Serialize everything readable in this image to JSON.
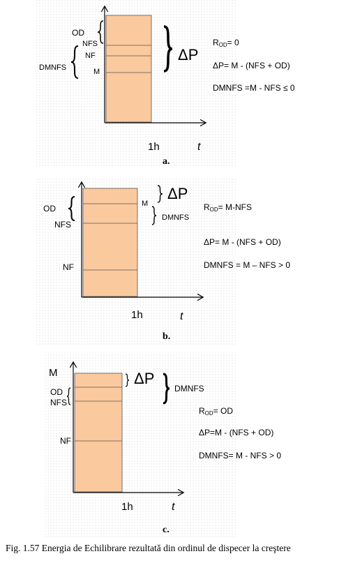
{
  "panels": [
    {
      "caption": "a.",
      "od": "OD",
      "nfs": "NFS",
      "nf": "NF",
      "m": "M",
      "dmnfs": "DMNFS",
      "delta_p": "ΔP",
      "r_od": {
        "symbol": "R",
        "subscript": "OD",
        "rest": "= 0"
      },
      "delta_p_formula": "ΔP= M - (NFS + OD)",
      "dmnfs_formula": "DMNFS =M - NFS ≤ 0",
      "x_tick": "1h",
      "x_label": "t"
    },
    {
      "caption": "b.",
      "od": "OD",
      "nfs": "NFS",
      "nf": "NF",
      "m": "M",
      "dmnfs": "DMNFS",
      "delta_p": "ΔP",
      "r_od": {
        "symbol": "R",
        "subscript": "OD",
        "rest": "= M-NFS"
      },
      "delta_p_formula": "ΔP= M - (NFS + OD)",
      "dmnfs_formula": "DMNFS = M – NFS > 0",
      "x_tick": "1h",
      "x_label": "t"
    },
    {
      "caption": "c.",
      "od": "OD",
      "nfs": "NFS",
      "nf": "NF",
      "m": "M",
      "dmnfs": "DMNFS",
      "delta_p": "ΔP",
      "r_od": {
        "symbol": "R",
        "subscript": "OD",
        "rest": "= OD"
      },
      "delta_p_formula": "ΔP=M - (NFS + OD)",
      "dmnfs_formula": "DMNFS= M - NFS > 0",
      "x_tick": "1h",
      "x_label": "t"
    }
  ],
  "figure_caption": "Fig. 1.57 Energia de Echilibrare rezultată din ordinul de dispecer la creştere"
}
